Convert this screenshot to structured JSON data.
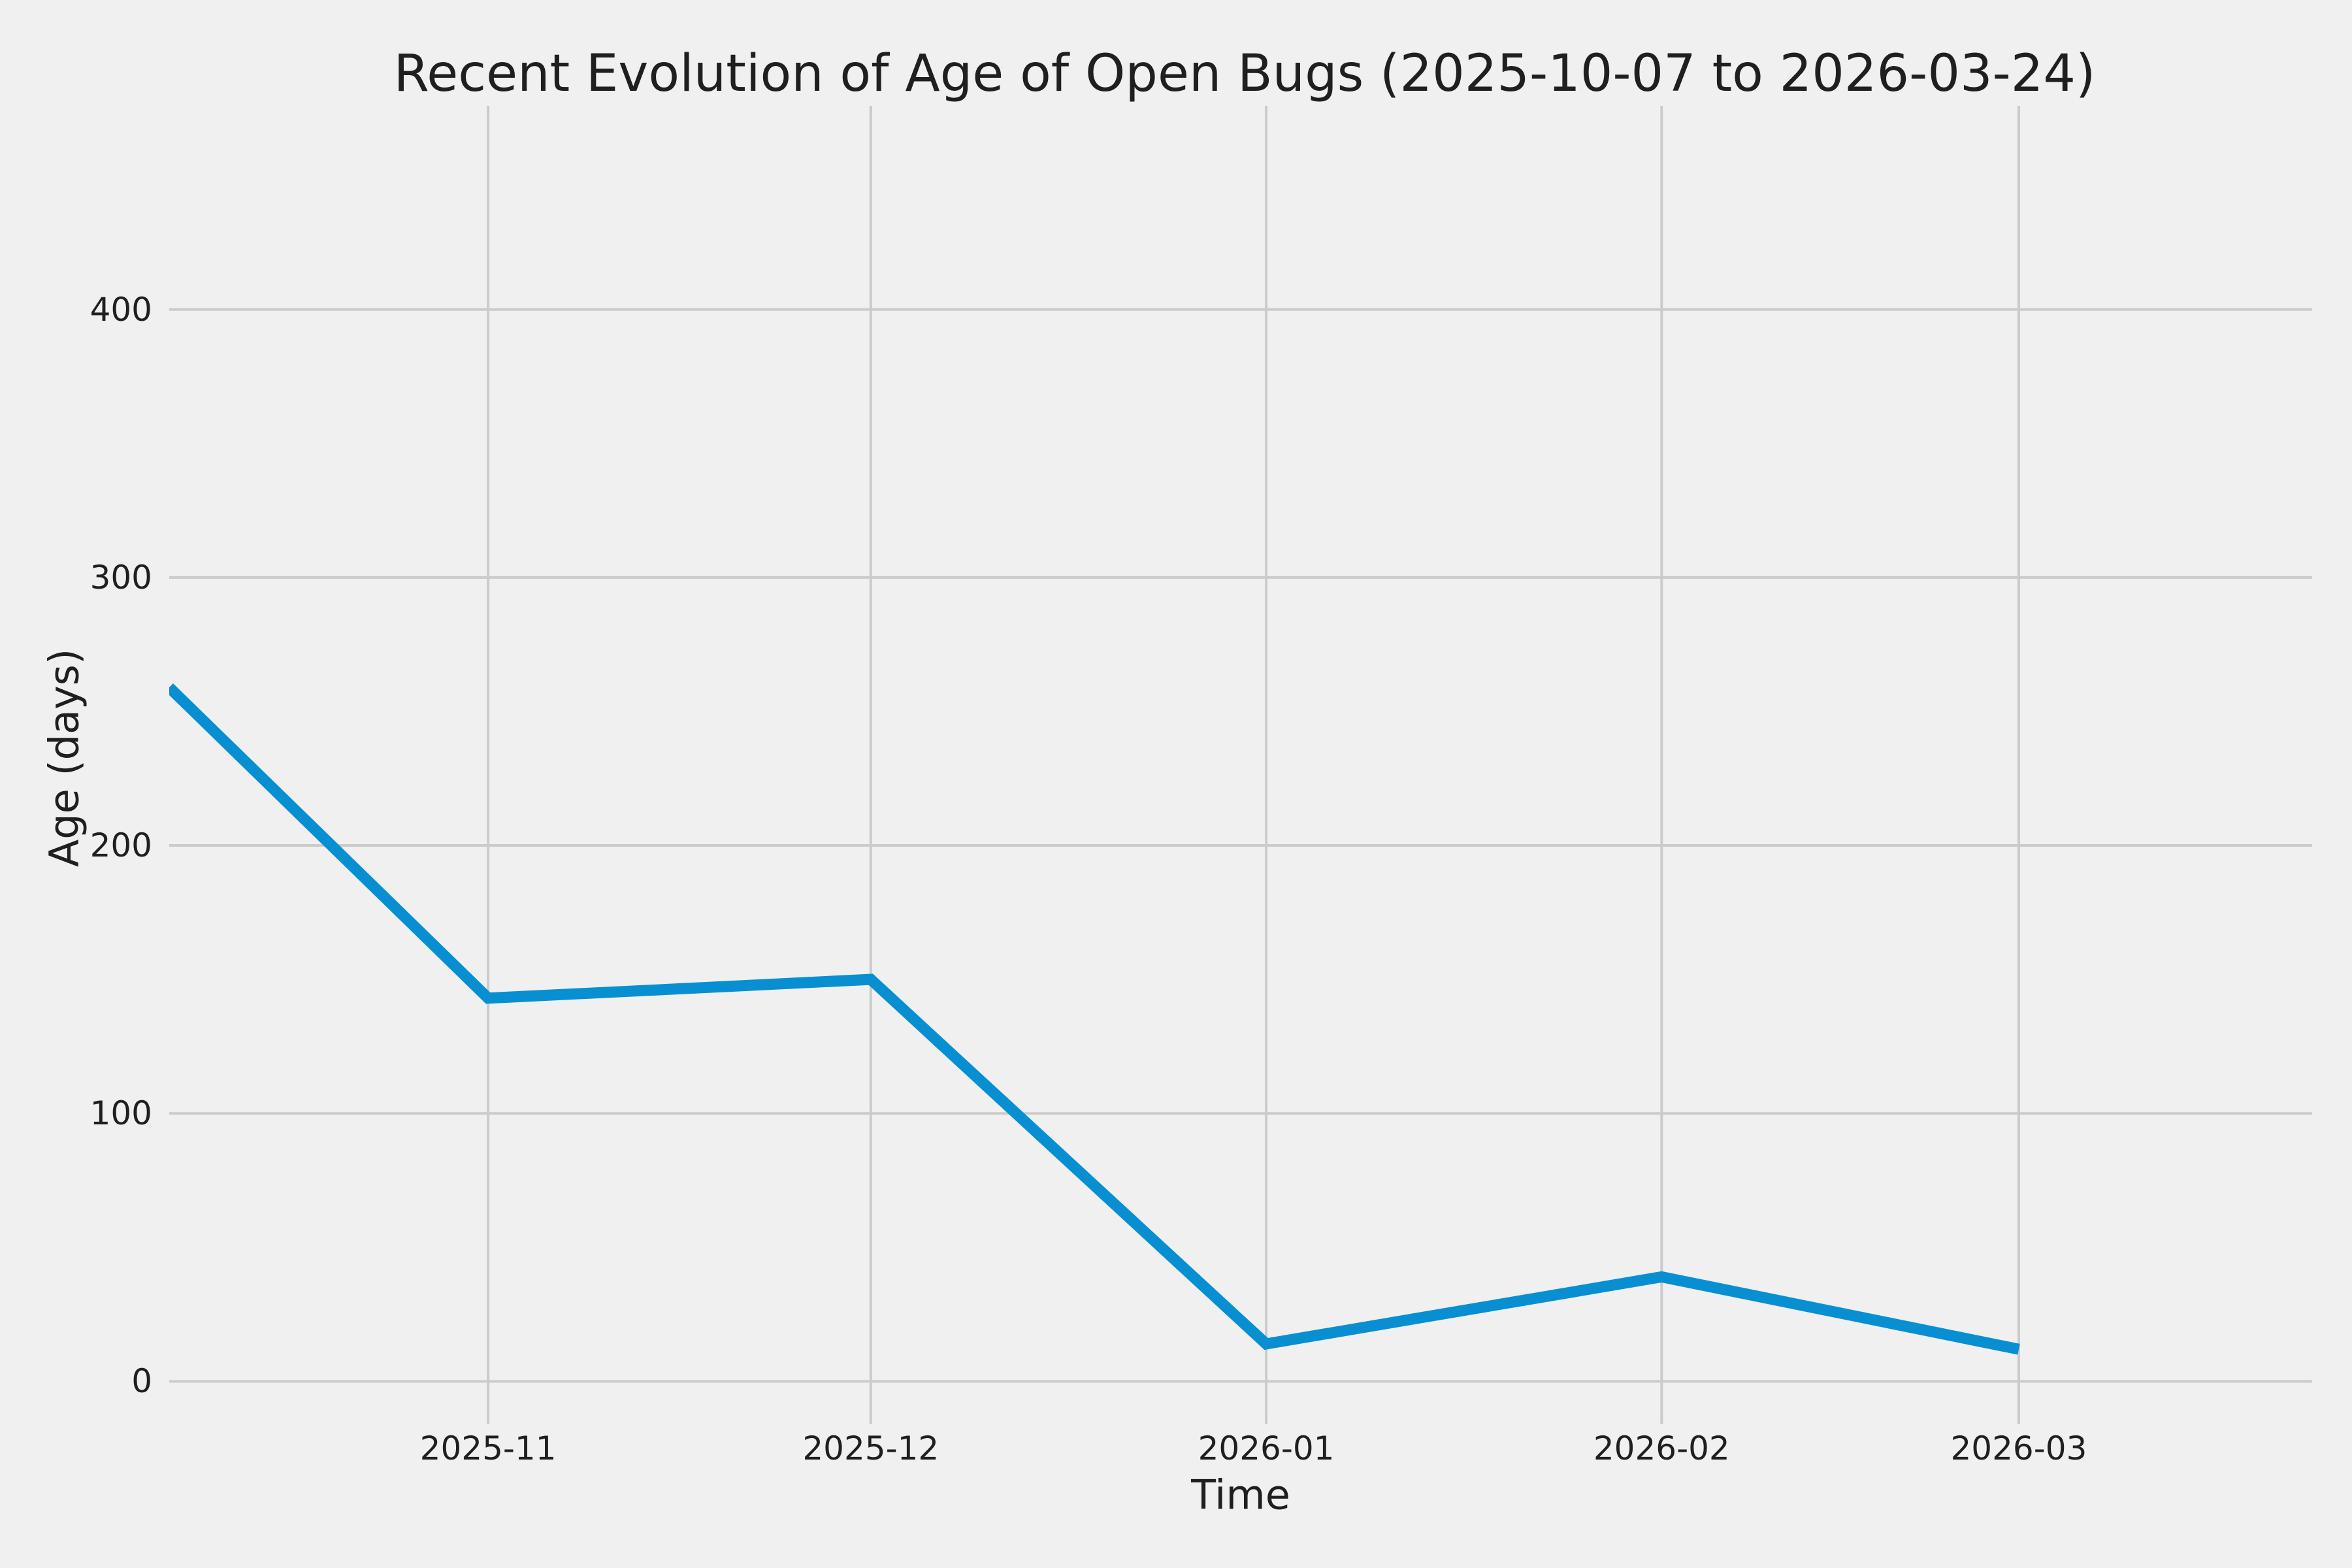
{
  "figure": {
    "title": "Recent Evolution of Age of Open Bugs (2025-10-07 to 2026-03-24)",
    "xlabel": "Time",
    "ylabel": "Age (days)"
  },
  "colors": {
    "background": "#F0F0F0",
    "grid": "#CBCBCB",
    "line": "#088FD2",
    "text": "#1F1F1F"
  },
  "chart_data": {
    "type": "line",
    "title": "Recent Evolution of Age of Open Bugs (2025-10-07 to 2026-03-24)",
    "xlabel": "Time",
    "ylabel": "Age (days)",
    "x": [
      "2025-10-07",
      "2025-11-01",
      "2025-12-01",
      "2026-01-01",
      "2026-02-01",
      "2026-03-01"
    ],
    "values": [
      259,
      143,
      150,
      14,
      39,
      12
    ],
    "xlim": [
      "2025-10-07",
      "2026-03-24"
    ],
    "ylim": [
      -16,
      476
    ],
    "grid": true,
    "legend": false,
    "x_ticks": [
      {
        "date": "2025-11-01",
        "label": "2025-11"
      },
      {
        "date": "2025-12-01",
        "label": "2025-12"
      },
      {
        "date": "2026-01-01",
        "label": "2026-01"
      },
      {
        "date": "2026-02-01",
        "label": "2026-02"
      },
      {
        "date": "2026-03-01",
        "label": "2026-03"
      }
    ],
    "y_ticks": [
      {
        "value": 0,
        "label": "0"
      },
      {
        "value": 100,
        "label": "100"
      },
      {
        "value": 200,
        "label": "200"
      },
      {
        "value": 300,
        "label": "300"
      },
      {
        "value": 400,
        "label": "400"
      }
    ]
  }
}
